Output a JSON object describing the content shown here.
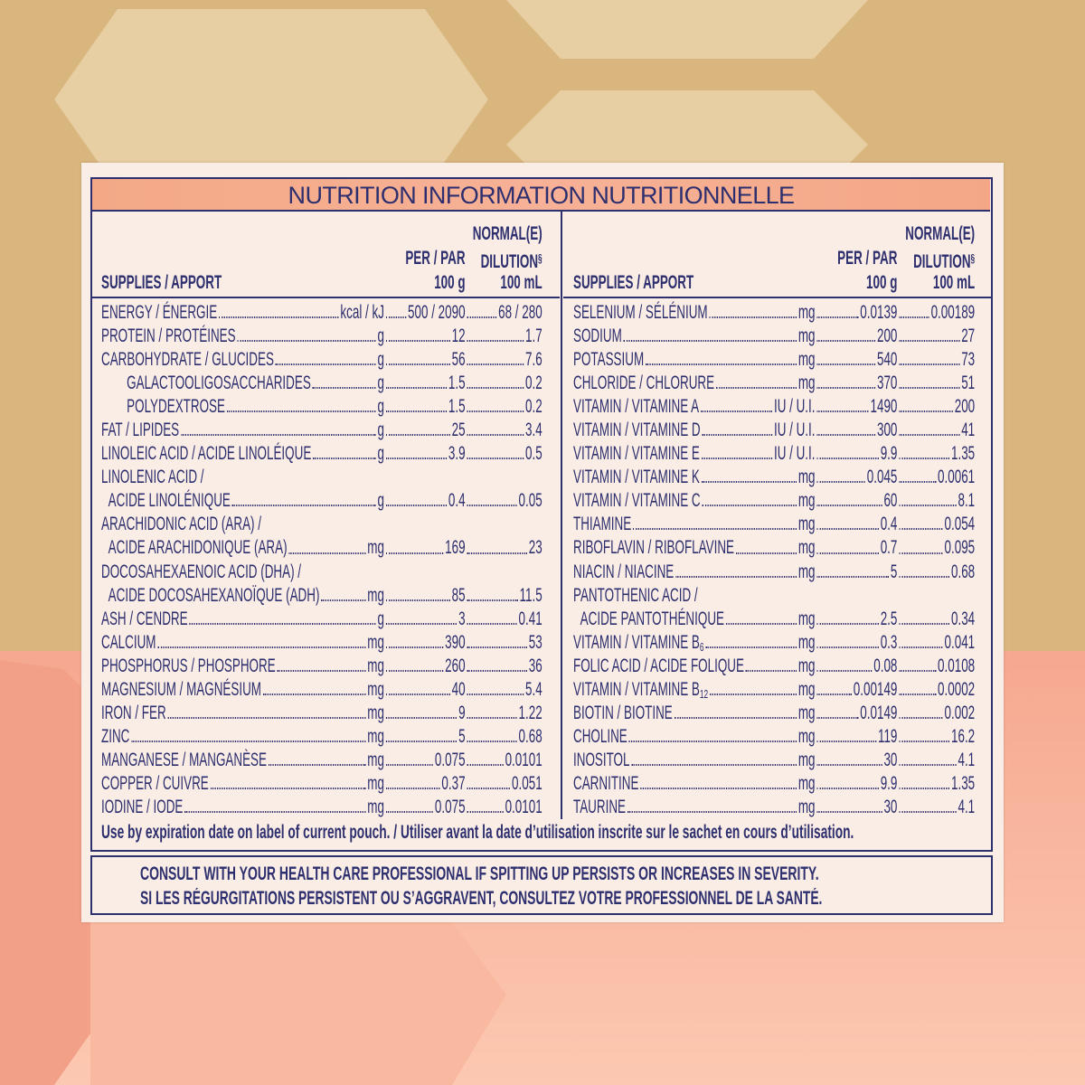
{
  "title": "NUTRITION INFORMATION NUTRITIONNELLE",
  "columns": [
    {
      "header": {
        "supplies": "SUPPLIES / APPORT",
        "per": "PER / PAR",
        "per_amount": "100 g",
        "normal": "NORMAL(E)",
        "dilution": "DILUTION",
        "dilution_mark": "§",
        "dilution_amount": "100 mL"
      },
      "items": [
        {
          "name": "ENERGY / ÉNERGIE",
          "unit": "kcal / kJ",
          "per_100g": "500 / 2090",
          "per_100ml": "68 / 280"
        },
        {
          "name": "PROTEIN / PROTÉINES",
          "unit": "g",
          "per_100g": 12,
          "per_100ml": 1.7
        },
        {
          "name": "CARBOHYDRATE / GLUCIDES",
          "unit": "g",
          "per_100g": 56,
          "per_100ml": 7.6,
          "components": [
            {
              "name": "GALACTOOLIGOSACCHARIDES",
              "unit": "g",
              "per_100g": 1.5,
              "per_100ml": 0.2
            },
            {
              "name": "POLYDEXTROSE",
              "unit": "g",
              "per_100g": 1.5,
              "per_100ml": 0.2
            }
          ]
        },
        {
          "name": "FAT / LIPIDES",
          "unit": "g",
          "per_100g": 25,
          "per_100ml": 3.4
        },
        {
          "name": "LINOLEIC ACID / ACIDE LINOLÉIQUE",
          "unit": "g",
          "per_100g": 3.9,
          "per_100ml": 0.5
        },
        {
          "name": [
            "LINOLENIC ACID /",
            "ACIDE LINOLÉNIQUE"
          ],
          "unit": "g",
          "per_100g": 0.4,
          "per_100ml": 0.05
        },
        {
          "name": [
            "ARACHIDONIC ACID (ARA) /",
            "ACIDE ARACHIDONIQUE (ARA)"
          ],
          "unit": "mg",
          "per_100g": 169,
          "per_100ml": 23
        },
        {
          "name": [
            "DOCOSAHEXAENOIC ACID (DHA) /",
            "ACIDE DOCOSAHEXANOÏQUE (ADH)"
          ],
          "unit": "mg",
          "per_100g": 85,
          "per_100ml": 11.5
        },
        {
          "name": "ASH / CENDRE",
          "unit": "g",
          "per_100g": 3,
          "per_100ml": 0.41
        },
        {
          "name": "CALCIUM",
          "unit": "mg",
          "per_100g": 390,
          "per_100ml": 53
        },
        {
          "name": "PHOSPHORUS / PHOSPHORE",
          "unit": "mg",
          "per_100g": 260,
          "per_100ml": 36
        },
        {
          "name": "MAGNESIUM / MAGNÉSIUM",
          "unit": "mg",
          "per_100g": 40,
          "per_100ml": 5.4
        },
        {
          "name": "IRON / FER",
          "unit": "mg",
          "per_100g": 9,
          "per_100ml": 1.22
        },
        {
          "name": "ZINC",
          "unit": "mg",
          "per_100g": 5,
          "per_100ml": 0.68
        },
        {
          "name": "MANGANESE / MANGANÈSE",
          "unit": "mg",
          "per_100g": 0.075,
          "per_100ml": 0.0101
        },
        {
          "name": "COPPER / CUIVRE",
          "unit": "mg",
          "per_100g": 0.37,
          "per_100ml": 0.051
        },
        {
          "name": "IODINE / IODE",
          "unit": "mg",
          "per_100g": 0.075,
          "per_100ml": 0.0101
        }
      ]
    },
    {
      "header": {
        "supplies": "SUPPLIES / APPORT",
        "per": "PER / PAR",
        "per_amount": "100 g",
        "normal": "NORMAL(E)",
        "dilution": "DILUTION",
        "dilution_mark": "§",
        "dilution_amount": "100 mL"
      },
      "items": [
        {
          "name": "SELENIUM / SÉLÉNIUM",
          "unit": "mg",
          "per_100g": 0.0139,
          "per_100ml": 0.00189
        },
        {
          "name": "SODIUM",
          "unit": "mg",
          "per_100g": 200,
          "per_100ml": 27
        },
        {
          "name": "POTASSIUM",
          "unit": "mg",
          "per_100g": 540,
          "per_100ml": 73
        },
        {
          "name": "CHLORIDE / CHLORURE",
          "unit": "mg",
          "per_100g": 370,
          "per_100ml": 51
        },
        {
          "name": "VITAMIN / VITAMINE A",
          "unit": "IU / U.I.",
          "per_100g": 1490,
          "per_100ml": 200
        },
        {
          "name": "VITAMIN / VITAMINE D",
          "unit": "IU / U.I.",
          "per_100g": 300,
          "per_100ml": 41
        },
        {
          "name": "VITAMIN / VITAMINE E",
          "unit": "IU / U.I.",
          "per_100g": 9.9,
          "per_100ml": 1.35
        },
        {
          "name": "VITAMIN / VITAMINE K",
          "unit": "mg",
          "per_100g": 0.045,
          "per_100ml": 0.0061
        },
        {
          "name": "VITAMIN / VITAMINE C",
          "unit": "mg",
          "per_100g": 60,
          "per_100ml": 8.1
        },
        {
          "name": "THIAMINE",
          "unit": "mg",
          "per_100g": 0.4,
          "per_100ml": 0.054
        },
        {
          "name": "RIBOFLAVIN / RIBOFLAVINE",
          "unit": "mg",
          "per_100g": 0.7,
          "per_100ml": 0.095
        },
        {
          "name": "NIACIN / NIACINE",
          "unit": "mg",
          "per_100g": 5,
          "per_100ml": 0.68
        },
        {
          "name": [
            "PANTOTHENIC ACID /",
            "ACIDE PANTOTHÉNIQUE"
          ],
          "unit": "mg",
          "per_100g": 2.5,
          "per_100ml": 0.34
        },
        {
          "name": "VITAMIN / VITAMINE B",
          "name_sub": "6",
          "unit": "mg",
          "per_100g": 0.3,
          "per_100ml": 0.041
        },
        {
          "name": "FOLIC ACID / ACIDE FOLIQUE",
          "unit": "mg",
          "per_100g": 0.08,
          "per_100ml": 0.0108
        },
        {
          "name": "VITAMIN / VITAMINE B",
          "name_sub": "12",
          "unit": "mg",
          "per_100g": 0.00149,
          "per_100ml": 0.0002
        },
        {
          "name": "BIOTIN / BIOTINE",
          "unit": "mg",
          "per_100g": 0.0149,
          "per_100ml": 0.002
        },
        {
          "name": "CHOLINE",
          "unit": "mg",
          "per_100g": 119,
          "per_100ml": 16.2
        },
        {
          "name": "INOSITOL",
          "unit": "mg",
          "per_100g": 30,
          "per_100ml": 4.1
        },
        {
          "name": "CARNITINE",
          "unit": "mg",
          "per_100g": 9.9,
          "per_100ml": 1.35
        },
        {
          "name": "TAURINE",
          "unit": "mg",
          "per_100g": 30,
          "per_100ml": 4.1
        }
      ]
    }
  ],
  "footnote": "Use by expiration date on label of current pouch. / Utiliser avant la date d’utilisation inscrite sur le sachet en cours d’utilisation.",
  "warning": [
    "CONSULT WITH YOUR HEALTH CARE PROFESSIONAL IF SPITTING UP PERSISTS OR INCREASES IN SEVERITY.",
    "SI LES RÉGURGITATIONS PERSISTENT OU S’AGGRAVENT, CONSULTEZ VOTRE PROFESSIONNEL DE LA SANTÉ."
  ]
}
